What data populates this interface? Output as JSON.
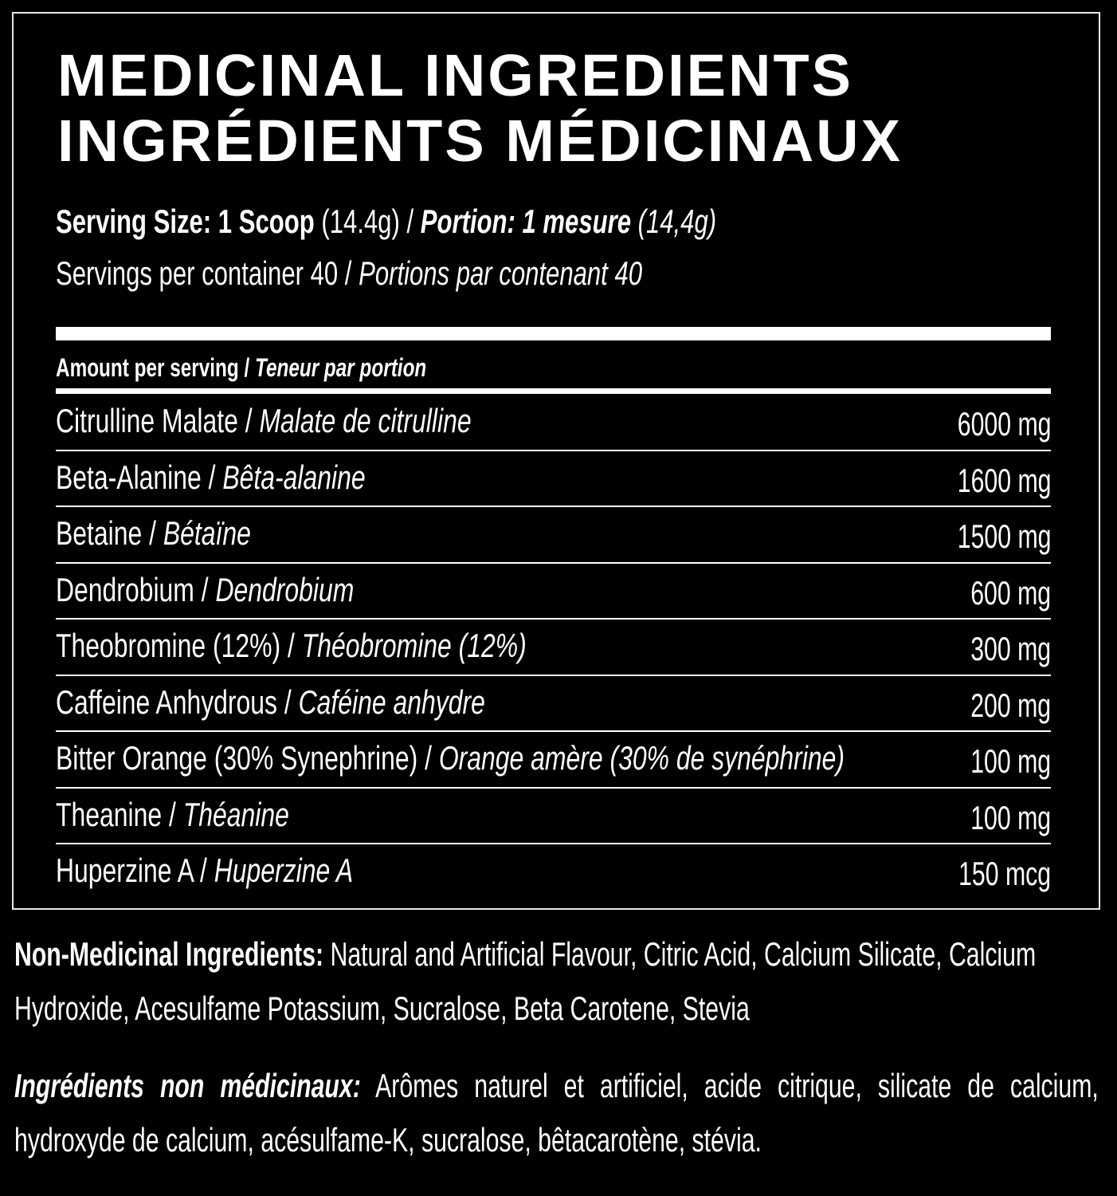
{
  "label": {
    "title_en": "MEDICINAL INGREDIENTS",
    "title_fr": "INGRÉDIENTS MÉDICINAUX",
    "serving_size_label": "Serving Size: 1 Scoop",
    "serving_size_value": " (14.4g) / ",
    "portion_label": "Portion: 1 mesure",
    "portion_value": " (14,4g)",
    "servings_en": "Servings per container 40 / ",
    "servings_fr": "Portions par contenant 40",
    "amount_header_en": "Amount per serving / ",
    "amount_header_fr": "Teneur par portion",
    "ingredients": [
      {
        "en": "Citrulline Malate / ",
        "fr": "Malate de citrulline",
        "amount": "6000 mg"
      },
      {
        "en": "Beta-Alanine / ",
        "fr": "Bêta-alanine",
        "amount": "1600 mg"
      },
      {
        "en": "Betaine / ",
        "fr": "Bétaïne",
        "amount": "1500 mg"
      },
      {
        "en": "Dendrobium / ",
        "fr": "Dendrobium",
        "amount": "600 mg"
      },
      {
        "en": "Theobromine (12%) / ",
        "fr": "Théobromine (12%)",
        "amount": "300 mg"
      },
      {
        "en": "Caffeine Anhydrous / ",
        "fr": "Caféine anhydre",
        "amount": "200 mg"
      },
      {
        "en": "Bitter Orange (30% Synephrine) / ",
        "fr": "Orange amère (30% de synéphrine)",
        "amount": "100 mg"
      },
      {
        "en": "Theanine / ",
        "fr": "Théanine",
        "amount": "100 mg"
      },
      {
        "en": "Huperzine A / ",
        "fr": "Huperzine A",
        "amount": "150 mcg"
      }
    ]
  },
  "non_medicinal": {
    "en_label": "Non-Medicinal Ingredients:",
    "en_text": " Natural and Artificial Flavour, Citric Acid, Calcium Silicate, Calcium Hydroxide, Acesulfame Potassium, Sucralose, Beta Carotene, Stevia",
    "fr_label": "Ingrédients non médicinaux:",
    "fr_text": " Arômes naturel et artificiel, acide citrique, silicate de calcium, hydroxyde de calcium, acésulfame-K, sucralose, bêtacarotène, stévia."
  }
}
